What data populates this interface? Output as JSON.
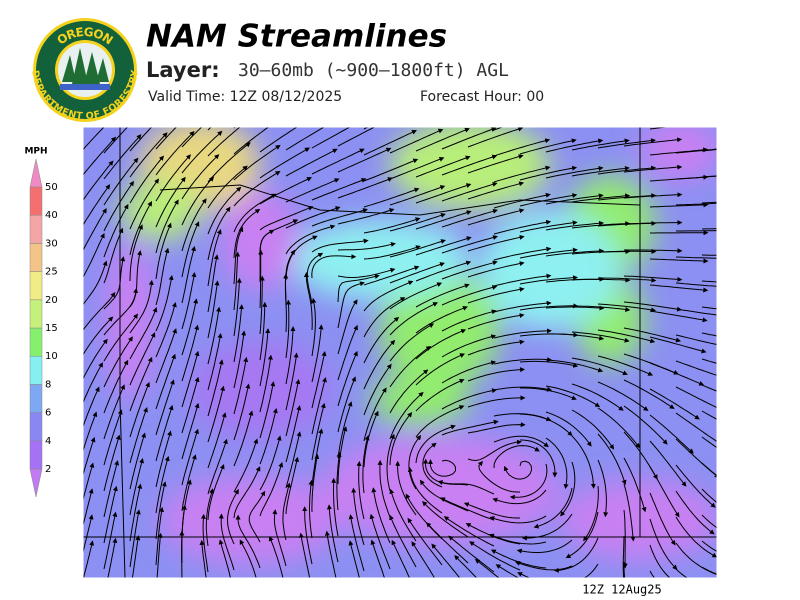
{
  "logo": {
    "top": "OREGON",
    "bottom": "DEPARTMENT OF FORESTRY"
  },
  "header": {
    "title": "NAM Streamlines",
    "layer_label": "Layer:",
    "layer": "30–60mb (~900–1800ft) AGL",
    "valid_time": "Valid Time: 12Z 08/12/2025",
    "forecast_hour": "Forecast Hour: 00"
  },
  "legend": {
    "unit": "MPH",
    "levels": [
      2,
      4,
      6,
      8,
      10,
      15,
      20,
      25,
      30,
      40,
      50
    ],
    "colors": [
      "#c27af2",
      "#a672f5",
      "#8a86f3",
      "#7fa8f3",
      "#86f0f0",
      "#86ef6e",
      "#c5f07c",
      "#f2ec86",
      "#f2c488",
      "#f4a6a6",
      "#f47070",
      "#f08ac4"
    ]
  },
  "stamp": "12Z 12Aug25"
}
